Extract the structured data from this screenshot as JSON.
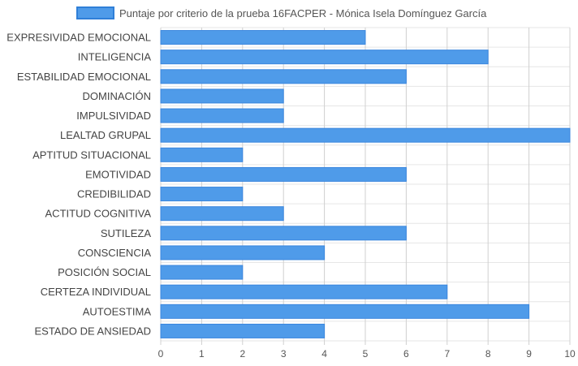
{
  "chart_data": {
    "type": "bar",
    "orientation": "horizontal",
    "legend": {
      "label": "Puntaje por criterio de la prueba 16FACPER - Mónica Isela Domínguez García",
      "position": "top"
    },
    "categories": [
      "EXPRESIVIDAD EMOCIONAL",
      "INTELIGENCIA",
      "ESTABILIDAD EMOCIONAL",
      "DOMINACIÓN",
      "IMPULSIVIDAD",
      "LEALTAD GRUPAL",
      "APTITUD SITUACIONAL",
      "EMOTIVIDAD",
      "CREDIBILIDAD",
      "ACTITUD COGNITIVA",
      "SUTILEZA",
      "CONSCIENCIA",
      "POSICIÓN SOCIAL",
      "CERTEZA INDIVIDUAL",
      "AUTOESTIMA",
      "ESTADO DE ANSIEDAD"
    ],
    "values": [
      5,
      8,
      6,
      3,
      3,
      10,
      2,
      6,
      2,
      3,
      6,
      4,
      2,
      7,
      9,
      4
    ],
    "xlim": [
      0,
      10
    ],
    "xticks": [
      "0",
      "1",
      "2",
      "3",
      "4",
      "5",
      "6",
      "7",
      "8",
      "9",
      "10"
    ],
    "grid": true,
    "colors": {
      "bar_fill": "#4f9be9",
      "bar_stroke": "#3a86de",
      "grid": "#e6e6e6",
      "grid_vertical": "#d0d0d0"
    }
  }
}
